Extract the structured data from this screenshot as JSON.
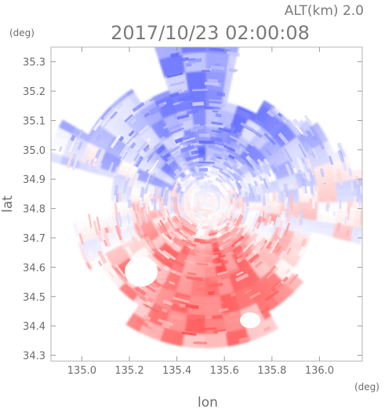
{
  "header": {
    "altitude_label": "ALT(km) 2.0",
    "timestamp": "2017/10/23 02:00:08",
    "lat_unit": "(deg)",
    "lon_unit": "(deg)"
  },
  "chart_data": {
    "type": "heatmap",
    "title": "2017/10/23 02:00:08",
    "xlabel": "lon",
    "ylabel": "lat",
    "xlim": [
      134.87,
      136.18
    ],
    "ylim": [
      34.28,
      35.35
    ],
    "xticks": [
      "135.0",
      "135.2",
      "135.4",
      "135.6",
      "135.8",
      "136.0"
    ],
    "xtick_values": [
      135.0,
      135.2,
      135.4,
      135.6,
      135.8,
      136.0
    ],
    "yticks": [
      "34.3",
      "34.4",
      "34.5",
      "34.6",
      "34.7",
      "34.8",
      "34.9",
      "35.0",
      "35.1",
      "35.2",
      "35.3"
    ],
    "ytick_values": [
      34.3,
      34.4,
      34.5,
      34.6,
      34.7,
      34.8,
      34.9,
      35.0,
      35.1,
      35.2,
      35.3
    ],
    "radar_center": {
      "lon": 135.52,
      "lat": 34.82
    },
    "colors": {
      "toward": "#ff5050",
      "away": "#5a64ff",
      "zero": "#ffffff"
    },
    "colormap": "diverging red-white-blue"
  }
}
